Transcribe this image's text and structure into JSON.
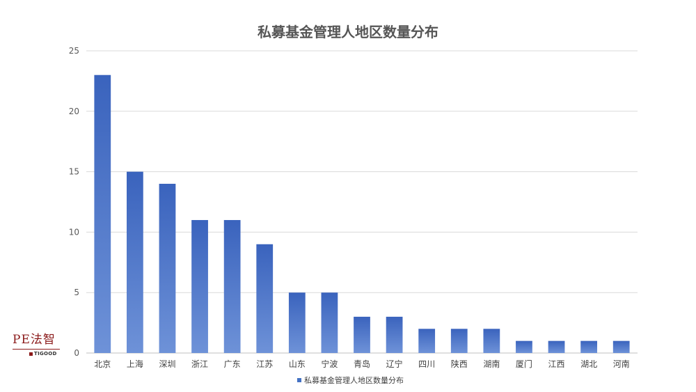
{
  "chart_data": {
    "type": "bar",
    "title": "私募基金管理人地区数量分布",
    "categories": [
      "北京",
      "上海",
      "深圳",
      "浙江",
      "广东",
      "江苏",
      "山东",
      "宁波",
      "青岛",
      "辽宁",
      "四川",
      "陕西",
      "湖南",
      "厦门",
      "江西",
      "湖北",
      "河南"
    ],
    "series": [
      {
        "name": "私募基金管理人地区数量分布",
        "values": [
          23,
          15,
          14,
          11,
          11,
          9,
          5,
          5,
          3,
          3,
          2,
          2,
          2,
          1,
          1,
          1,
          1
        ],
        "color": "#4472C4"
      }
    ],
    "yticks": [
      0,
      5,
      10,
      15,
      20,
      25
    ],
    "ylim": [
      0,
      25
    ],
    "grid": true,
    "legend": "bottom",
    "xlabel": "",
    "ylabel": ""
  },
  "watermark": {
    "text": "PE法智",
    "subtext": "TIGOOD",
    "color": "#8b1a1a"
  }
}
